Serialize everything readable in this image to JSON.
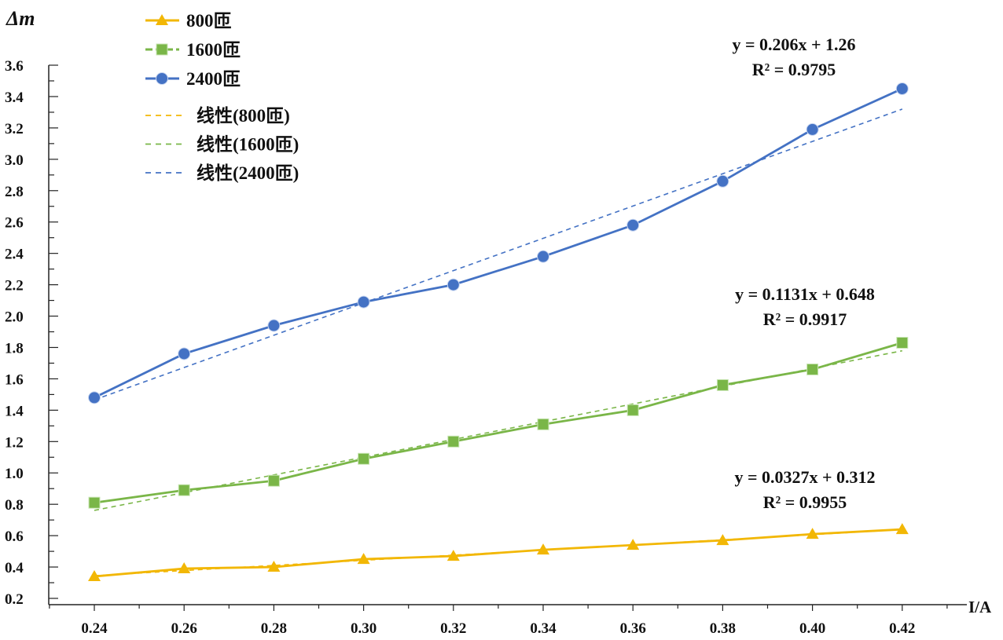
{
  "chart_data": {
    "type": "line",
    "title": "",
    "xlabel": "I/A",
    "ylabel": "Δm",
    "x": [
      0.24,
      0.26,
      0.28,
      0.3,
      0.32,
      0.34,
      0.36,
      0.38,
      0.4,
      0.42
    ],
    "x_tick_labels": [
      "0.24",
      "0.26",
      "0.28",
      "0.30",
      "0.32",
      "0.34",
      "0.36",
      "0.38",
      "0.40",
      "0.42"
    ],
    "y_tick_labels": [
      "0.2",
      "0.4",
      "0.6",
      "0.8",
      "1.0",
      "1.2",
      "1.4",
      "1.6",
      "1.8",
      "2.0",
      "2.2",
      "2.4",
      "2.6",
      "2.8",
      "3.0",
      "3.2",
      "3.4",
      "3.6"
    ],
    "xlim": [
      0.23,
      0.43
    ],
    "ylim": [
      0.2,
      3.6
    ],
    "grid": false,
    "legend_placement": "top-left",
    "series": [
      {
        "name": "800匝",
        "marker": "triangle",
        "color": "#F2B705",
        "values": [
          0.34,
          0.39,
          0.4,
          0.45,
          0.47,
          0.51,
          0.54,
          0.57,
          0.61,
          0.64
        ],
        "trend": {
          "name": "线性(800匝)",
          "slope": 0.0327,
          "intercept": 0.312,
          "equation": "y = 0.0327x + 0.312",
          "r2": "R² = 0.9955"
        }
      },
      {
        "name": "1600匝",
        "marker": "square",
        "color": "#7AB648",
        "values": [
          0.81,
          0.89,
          0.95,
          1.09,
          1.2,
          1.31,
          1.4,
          1.56,
          1.66,
          1.83
        ],
        "trend": {
          "name": "线性(1600匝)",
          "slope": 0.1131,
          "intercept": 0.648,
          "equation": "y = 0.1131x + 0.648",
          "r2": "R² = 0.9917"
        }
      },
      {
        "name": "2400匝",
        "marker": "circle",
        "color": "#4472C4",
        "values": [
          1.48,
          1.76,
          1.94,
          2.09,
          2.2,
          2.38,
          2.58,
          2.86,
          3.19,
          3.45
        ],
        "trend": {
          "name": "线性(2400匝)",
          "slope": 0.206,
          "intercept": 1.26,
          "equation": "y = 0.206x + 1.26",
          "r2": "R² = 0.9795"
        }
      }
    ]
  }
}
